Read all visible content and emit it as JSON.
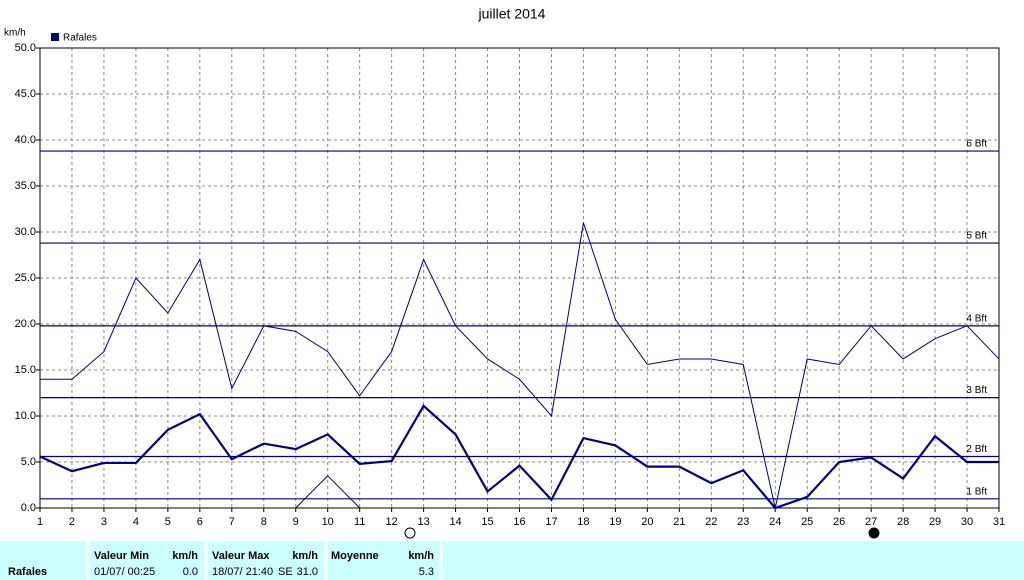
{
  "chart_data": {
    "type": "line",
    "title": "juillet 2014",
    "y_label": "km/h",
    "x": [
      1,
      2,
      3,
      4,
      5,
      6,
      7,
      8,
      9,
      10,
      11,
      12,
      13,
      14,
      15,
      16,
      17,
      18,
      19,
      20,
      21,
      22,
      23,
      24,
      25,
      26,
      27,
      28,
      29,
      30,
      31
    ],
    "xlim": [
      1,
      31
    ],
    "series": [
      {
        "name": "Rafales",
        "color": "#000080",
        "line_width": 1,
        "values": [
          14,
          14,
          17,
          25,
          21.2,
          27,
          13,
          19.8,
          19.2,
          17,
          12.2,
          17,
          27,
          19.8,
          16.2,
          14,
          10,
          31,
          20.5,
          15.6,
          16.2,
          16.2,
          15.6,
          0,
          16.2,
          15.6,
          19.8,
          16.2,
          18.4,
          19.8,
          16.2
        ]
      },
      {
        "color": "#000080",
        "line_width": 2.2,
        "values": [
          5.6,
          4,
          4.9,
          4.9,
          8.5,
          10.2,
          5.3,
          7,
          6.4,
          8,
          4.8,
          5.1,
          11.1,
          8,
          1.8,
          4.6,
          0.9,
          7.6,
          6.8,
          4.5,
          4.5,
          2.7,
          4.1,
          0,
          1.2,
          5,
          5.5,
          3.2,
          7.8,
          5,
          5
        ]
      },
      {
        "color": "#000080",
        "line_width": 1,
        "values": [
          0,
          0,
          0,
          0,
          0,
          0,
          0,
          0,
          0,
          3.5,
          0,
          0,
          0,
          0,
          0,
          0,
          0,
          0,
          0,
          0,
          0,
          0,
          0,
          0,
          0,
          0,
          0,
          0,
          0,
          0,
          0
        ]
      }
    ],
    "ylim": [
      0,
      50
    ],
    "yticks": [
      {
        "value": 0,
        "label": "0.0"
      },
      {
        "value": 5,
        "label": "5.0"
      },
      {
        "value": 10,
        "label": "10.0"
      },
      {
        "value": 15,
        "label": "15.0"
      },
      {
        "value": 20,
        "label": "20.0"
      },
      {
        "value": 25,
        "label": "25.0"
      },
      {
        "value": 30,
        "label": "30.0"
      },
      {
        "value": 35,
        "label": "35.0"
      },
      {
        "value": 40,
        "label": "40.0"
      },
      {
        "value": 45,
        "label": "45.0"
      },
      {
        "value": 50,
        "label": "50.0"
      }
    ],
    "reference_lines": [
      {
        "value": 1,
        "label": "1 Bft"
      },
      {
        "value": 5.6,
        "label": "2 Bft"
      },
      {
        "value": 12,
        "label": "3 Bft"
      },
      {
        "value": 19.8,
        "label": "4 Bft"
      },
      {
        "value": 28.8,
        "label": "5 Bft"
      },
      {
        "value": 38.8,
        "label": "6 Bft"
      }
    ],
    "grid": true,
    "legend_position": "top-left"
  },
  "summary_table": {
    "row_label": "Rafales",
    "columns": [
      {
        "header": "Valeur Min",
        "unit": "km/h",
        "date": "01/07/ 00:25",
        "value": "0.0"
      },
      {
        "header": "Valeur Max",
        "unit": "km/h",
        "date": "18/07/ 21:40",
        "direction": "SE",
        "value": "31.0"
      },
      {
        "header": "Moyenne",
        "unit": "km/h",
        "value": "5.3"
      }
    ]
  }
}
